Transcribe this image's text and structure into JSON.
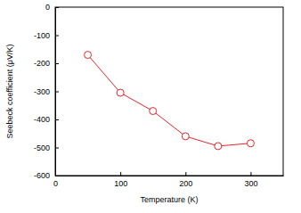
{
  "chart_data": {
    "type": "line",
    "x_label": "Temperature (K)",
    "y_label": "Seebeck coefficient (μV/K)",
    "x": [
      50,
      100,
      150,
      200,
      250,
      300
    ],
    "values": [
      -170,
      -305,
      -370,
      -460,
      -495,
      -485
    ],
    "color": "#e8242b",
    "marker": "open-circle",
    "xlim": [
      0,
      350
    ],
    "xticks": [
      0,
      100,
      200,
      300
    ],
    "ylim": [
      -600,
      0
    ],
    "yticks": [
      -600,
      -500,
      -400,
      -300,
      -200,
      -100,
      0
    ],
    "grid": false
  }
}
